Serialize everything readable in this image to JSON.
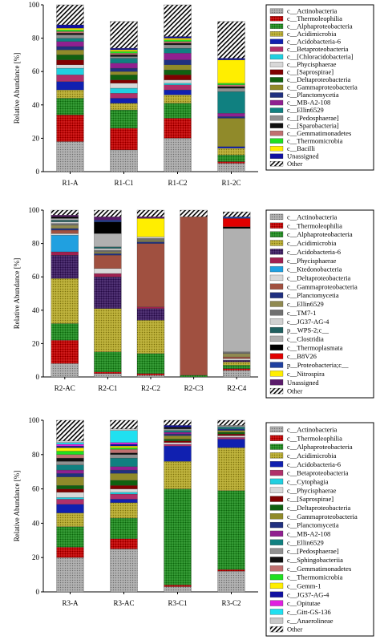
{
  "chart_data": [
    {
      "type": "bar",
      "stacked": true,
      "ylabel": "Relative Abundance [%]",
      "ylim": [
        0,
        100
      ],
      "yticks": [
        0,
        20,
        40,
        60,
        80,
        100
      ],
      "categories": [
        "R1-A",
        "R1-C1",
        "R1-C2",
        "R1-2C"
      ],
      "legend_position": "right",
      "series": [
        {
          "name": "c__Actinobacteria",
          "color": "#a8a8a8",
          "pattern": "dots",
          "values": [
            18,
            13,
            20,
            5
          ]
        },
        {
          "name": "c__Thermoleophilia",
          "color": "#c00000",
          "pattern": "dots",
          "values": [
            16,
            13,
            12,
            1
          ]
        },
        {
          "name": "c__Alphaproteobacteria",
          "color": "#1e8a1e",
          "pattern": "dots",
          "values": [
            10,
            11,
            9,
            4
          ]
        },
        {
          "name": "c__Acidimicrobia",
          "color": "#b5a82a",
          "pattern": "dots",
          "values": [
            5,
            4,
            5,
            4
          ]
        },
        {
          "name": "c__Acidobacteria-6",
          "color": "#1020b0",
          "pattern": "solid",
          "values": [
            5,
            3,
            3,
            1
          ]
        },
        {
          "name": "c__Betaproteobacteria",
          "color": "#b0306a",
          "pattern": "solid",
          "values": [
            4,
            3,
            3,
            0
          ]
        },
        {
          "name": "c__[Chloracidobacteria]",
          "color": "#20d0e0",
          "pattern": "solid",
          "values": [
            4,
            3,
            1,
            0
          ]
        },
        {
          "name": "c__Phycisphaerae",
          "color": "#d8d8d8",
          "pattern": "solid",
          "values": [
            2,
            3,
            2,
            0
          ]
        },
        {
          "name": "c__[Saprospirae]",
          "color": "#800000",
          "pattern": "solid",
          "values": [
            3,
            2,
            3,
            0
          ]
        },
        {
          "name": "c__Deltaproteobacteria",
          "color": "#106010",
          "pattern": "solid",
          "values": [
            3,
            3,
            3,
            0
          ]
        },
        {
          "name": "c__Gammaproteobacteria",
          "color": "#908a2a",
          "pattern": "solid",
          "values": [
            3,
            2,
            3,
            17
          ]
        },
        {
          "name": "c__Planctomycetia",
          "color": "#203080",
          "pattern": "solid",
          "values": [
            2,
            2,
            3,
            1
          ]
        },
        {
          "name": "c__MB-A2-108",
          "color": "#902090",
          "pattern": "solid",
          "values": [
            3,
            3,
            4,
            2
          ]
        },
        {
          "name": "c__Ellin6529",
          "color": "#108080",
          "pattern": "solid",
          "values": [
            2,
            3,
            3,
            13
          ]
        },
        {
          "name": "c__[Pedosphaerae]",
          "color": "#909090",
          "pattern": "solid",
          "values": [
            2,
            1,
            2,
            2
          ]
        },
        {
          "name": "c__[Sparobacteria]",
          "color": "#101010",
          "pattern": "solid",
          "values": [
            1,
            1,
            1,
            1
          ]
        },
        {
          "name": "c__Gemmatimonadetes",
          "color": "#c07070",
          "pattern": "solid",
          "values": [
            1,
            1,
            1,
            1
          ]
        },
        {
          "name": "c__Thermomicrobia",
          "color": "#20e020",
          "pattern": "solid",
          "values": [
            1,
            1,
            1,
            1
          ]
        },
        {
          "name": "c__Bacilli",
          "color": "#ffee00",
          "pattern": "solid",
          "values": [
            1,
            1,
            1,
            14
          ]
        },
        {
          "name": "Unassigned",
          "color": "#1010a0",
          "pattern": "solid",
          "values": [
            2,
            1,
            1,
            1
          ]
        },
        {
          "name": "Other",
          "color": "#ffffff",
          "pattern": "hatch",
          "values": [
            12,
            16,
            19,
            22
          ]
        }
      ]
    },
    {
      "type": "bar",
      "stacked": true,
      "ylabel": "Relative Abundance [%]",
      "ylim": [
        0,
        100
      ],
      "yticks": [
        0,
        20,
        40,
        60,
        80,
        100
      ],
      "categories": [
        "R2-AC",
        "R2-C1",
        "R2-C2",
        "R2-C3",
        "R2-C4"
      ],
      "legend_position": "right",
      "series": [
        {
          "name": "c__Actinobacteria",
          "color": "#a8a8a8",
          "pattern": "dots",
          "values": [
            8,
            2,
            1,
            0,
            4
          ]
        },
        {
          "name": "c__Thermoleophilia",
          "color": "#c00000",
          "pattern": "dots",
          "values": [
            14,
            1,
            1,
            0,
            1
          ]
        },
        {
          "name": "c__Alphaproteobacteria",
          "color": "#1e8a1e",
          "pattern": "dots",
          "values": [
            10,
            12,
            12,
            1,
            2
          ]
        },
        {
          "name": "c__Acidimicrobia",
          "color": "#b5a82a",
          "pattern": "dots",
          "values": [
            27,
            26,
            20,
            0,
            2
          ]
        },
        {
          "name": "c__Acidobacteria-6",
          "color": "#3a1a60",
          "pattern": "dots",
          "values": [
            14,
            19,
            7,
            0,
            1
          ]
        },
        {
          "name": "c__Phycisphaerae",
          "color": "#a02050",
          "pattern": "solid",
          "values": [
            2,
            2,
            1,
            0,
            0
          ]
        },
        {
          "name": "c__Ktedonobacteria",
          "color": "#20a0e0",
          "pattern": "solid",
          "values": [
            10,
            0,
            0,
            0,
            0
          ]
        },
        {
          "name": "c__Deltaproteobacteria",
          "color": "#d8d8d8",
          "pattern": "solid",
          "values": [
            1,
            3,
            0,
            0,
            1
          ]
        },
        {
          "name": "c__Gammaproteobacteria",
          "color": "#a05040",
          "pattern": "solid",
          "values": [
            2,
            8,
            38,
            95,
            1
          ]
        },
        {
          "name": "c__Planctomycetia",
          "color": "#203080",
          "pattern": "solid",
          "values": [
            1,
            1,
            1,
            0,
            0
          ]
        },
        {
          "name": "c__Ellin6529",
          "color": "#908a50",
          "pattern": "solid",
          "values": [
            2,
            1,
            1,
            0,
            2
          ]
        },
        {
          "name": "c__TM7-1",
          "color": "#707070",
          "pattern": "solid",
          "values": [
            1,
            1,
            1,
            0,
            1
          ]
        },
        {
          "name": "c__JG37-AG-4",
          "color": "#d0d0d0",
          "pattern": "solid",
          "values": [
            1,
            1,
            1,
            0,
            0
          ]
        },
        {
          "name": "p__WPS-2;c__",
          "color": "#206060",
          "pattern": "solid",
          "values": [
            1,
            1,
            0,
            0,
            0
          ]
        },
        {
          "name": "c__Clostridia",
          "color": "#b0b0b0",
          "pattern": "solid",
          "values": [
            1,
            8,
            0,
            0,
            74
          ]
        },
        {
          "name": "c__Thermoplasmata",
          "color": "#000000",
          "pattern": "solid",
          "values": [
            1,
            7,
            0,
            0,
            1
          ]
        },
        {
          "name": "c__B8V26",
          "color": "#e00000",
          "pattern": "solid",
          "values": [
            0,
            0,
            0,
            0,
            5
          ]
        },
        {
          "name": "p__Proteobacteria;c__",
          "color": "#2040a0",
          "pattern": "solid",
          "values": [
            0,
            1,
            0,
            0,
            1
          ]
        },
        {
          "name": "c__Nitrospira",
          "color": "#ffee00",
          "pattern": "solid",
          "values": [
            0,
            0,
            11,
            0,
            0
          ]
        },
        {
          "name": "Unassigned",
          "color": "#5a1a6a",
          "pattern": "solid",
          "values": [
            1,
            2,
            1,
            0,
            0
          ]
        },
        {
          "name": "Other",
          "color": "#ffffff",
          "pattern": "hatch",
          "values": [
            3,
            4,
            4,
            4,
            3
          ]
        }
      ]
    },
    {
      "type": "bar",
      "stacked": true,
      "ylabel": "Relative Abundance [%]",
      "ylim": [
        0,
        100
      ],
      "yticks": [
        0,
        20,
        40,
        60,
        80,
        100
      ],
      "categories": [
        "R3-A",
        "R3-AC",
        "R3-C1",
        "R3-C2"
      ],
      "legend_position": "right",
      "series": [
        {
          "name": "c__Actinobacteria",
          "color": "#a8a8a8",
          "pattern": "dots",
          "values": [
            20,
            25,
            3,
            12
          ]
        },
        {
          "name": "c__Thermoleophilia",
          "color": "#c00000",
          "pattern": "dots",
          "values": [
            6,
            6,
            1,
            1
          ]
        },
        {
          "name": "c__Alphaproteobacteria",
          "color": "#1e8a1e",
          "pattern": "dots",
          "values": [
            12,
            12,
            56,
            46
          ]
        },
        {
          "name": "c__Acidimicrobia",
          "color": "#b5a82a",
          "pattern": "dots",
          "values": [
            8,
            9,
            16,
            25
          ]
        },
        {
          "name": "c__Acidobacteria-6",
          "color": "#1020b0",
          "pattern": "solid",
          "values": [
            5,
            2,
            9,
            5
          ]
        },
        {
          "name": "c__Betaproteobacteria",
          "color": "#b0306a",
          "pattern": "solid",
          "values": [
            3,
            3,
            1,
            1
          ]
        },
        {
          "name": "c__Cytophagia",
          "color": "#20d0e0",
          "pattern": "solid",
          "values": [
            1,
            1,
            0,
            0
          ]
        },
        {
          "name": "c__Phycisphaerae",
          "color": "#d8d8d8",
          "pattern": "solid",
          "values": [
            3,
            2,
            1,
            1
          ]
        },
        {
          "name": "c__[Saprospirae]",
          "color": "#800000",
          "pattern": "solid",
          "values": [
            2,
            2,
            1,
            1
          ]
        },
        {
          "name": "c__Deltaproteobacteria",
          "color": "#106010",
          "pattern": "solid",
          "values": [
            2,
            3,
            1,
            1
          ]
        },
        {
          "name": "c__Gammaproteobacteria",
          "color": "#908a2a",
          "pattern": "solid",
          "values": [
            5,
            4,
            2,
            1
          ]
        },
        {
          "name": "c__Planctomycetia",
          "color": "#203080",
          "pattern": "solid",
          "values": [
            2,
            2,
            1,
            1
          ]
        },
        {
          "name": "c__MB-A2-108",
          "color": "#902090",
          "pattern": "solid",
          "values": [
            2,
            2,
            1,
            0
          ]
        },
        {
          "name": "c__Ellin6529",
          "color": "#108080",
          "pattern": "solid",
          "values": [
            3,
            5,
            1,
            1
          ]
        },
        {
          "name": "c__[Pedosphaerae]",
          "color": "#909090",
          "pattern": "solid",
          "values": [
            2,
            2,
            1,
            1
          ]
        },
        {
          "name": "c__Sphingobacteriia",
          "color": "#101010",
          "pattern": "solid",
          "values": [
            2,
            1,
            1,
            0
          ]
        },
        {
          "name": "c__Gemmatimonadetes",
          "color": "#c07070",
          "pattern": "solid",
          "values": [
            2,
            2,
            0,
            0
          ]
        },
        {
          "name": "c__Thermomicrobia",
          "color": "#20e020",
          "pattern": "solid",
          "values": [
            2,
            1,
            0,
            0
          ]
        },
        {
          "name": "c__Gemm-1",
          "color": "#ffee00",
          "pattern": "solid",
          "values": [
            2,
            1,
            0,
            0
          ]
        },
        {
          "name": "c__JG37-AG-4",
          "color": "#1010a0",
          "pattern": "solid",
          "values": [
            1,
            1,
            1,
            0
          ]
        },
        {
          "name": "c__Opitutae",
          "color": "#e020e0",
          "pattern": "solid",
          "values": [
            1,
            1,
            0,
            0
          ]
        },
        {
          "name": "c__Gitt-GS-136",
          "color": "#20e0f0",
          "pattern": "solid",
          "values": [
            1,
            7,
            0,
            0
          ]
        },
        {
          "name": "c__Anaerolineae",
          "color": "#c8c8c8",
          "pattern": "solid",
          "values": [
            1,
            1,
            0,
            0
          ]
        },
        {
          "name": "Other",
          "color": "#ffffff",
          "pattern": "hatch",
          "values": [
            12,
            5,
            3,
            3
          ]
        }
      ]
    }
  ]
}
